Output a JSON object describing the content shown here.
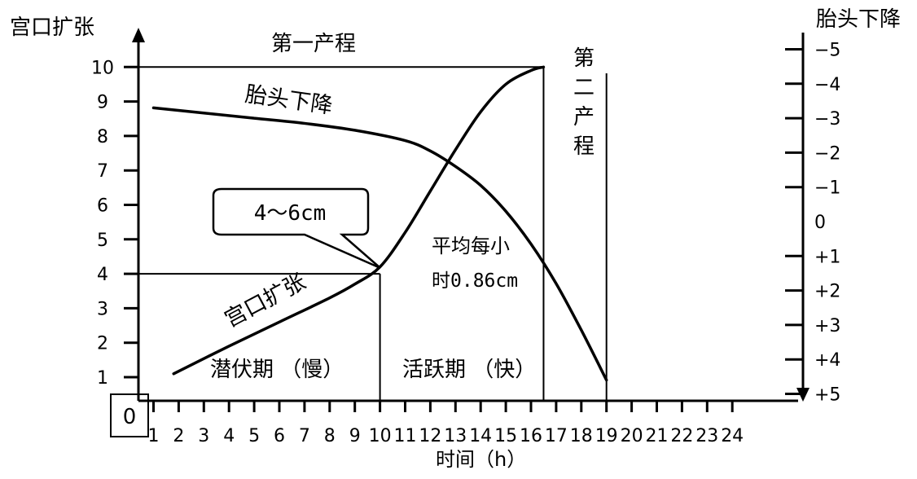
{
  "chart_data": {
    "type": "line",
    "ylabel_left": "宫口扩张",
    "ylabel_right": "胎头下降",
    "xlabel": "时间（h）",
    "origin_label": "0",
    "x_ticks": [
      1,
      2,
      3,
      4,
      5,
      6,
      7,
      8,
      9,
      10,
      11,
      12,
      13,
      14,
      15,
      16,
      17,
      18,
      19,
      20,
      21,
      22,
      23,
      24
    ],
    "y_left_ticks": [
      1,
      2,
      3,
      4,
      5,
      6,
      7,
      8,
      9,
      10
    ],
    "y_right_ticks": [
      "−5",
      "−4",
      "−3",
      "−2",
      "−1",
      "0",
      "+1",
      "+2",
      "+3",
      "+4",
      "+5"
    ],
    "series": [
      {
        "name": "宫口扩张",
        "axis": "left",
        "points": [
          [
            1.8,
            1.1
          ],
          [
            4,
            1.9
          ],
          [
            6,
            2.6
          ],
          [
            8,
            3.3
          ],
          [
            9,
            3.7
          ],
          [
            10,
            4.2
          ],
          [
            11,
            5.2
          ],
          [
            12,
            6.4
          ],
          [
            13,
            7.6
          ],
          [
            14,
            8.7
          ],
          [
            15,
            9.5
          ],
          [
            16,
            9.9
          ],
          [
            16.5,
            10
          ]
        ]
      },
      {
        "name": "胎头下降",
        "axis": "right",
        "points": [
          [
            1,
            -3.3
          ],
          [
            3,
            -3.15
          ],
          [
            5,
            -3.0
          ],
          [
            7,
            -2.85
          ],
          [
            9,
            -2.65
          ],
          [
            11,
            -2.35
          ],
          [
            12,
            -2.05
          ],
          [
            13,
            -1.6
          ],
          [
            14,
            -1.05
          ],
          [
            15,
            -0.3
          ],
          [
            16,
            0.65
          ],
          [
            17,
            1.8
          ],
          [
            18,
            3.15
          ],
          [
            19,
            4.6
          ]
        ]
      }
    ],
    "annotations": {
      "first_stage": "第一产程",
      "second_stage": "第二产程",
      "latent_phase": "潜伏期 （慢）",
      "active_phase": "活跃期 （快）",
      "rate_line1": "平均每小",
      "rate_line2": "时0.86cm",
      "callout": "4～6cm",
      "curve_label_dilation": "宫口扩张",
      "curve_label_descent": "胎头下降"
    },
    "reference_lines": {
      "active_start_x": 10,
      "first_stage_end_x": 16.5,
      "second_stage_end_x": 19,
      "dilation_level_4": 4,
      "dilation_level_10": 10
    }
  }
}
